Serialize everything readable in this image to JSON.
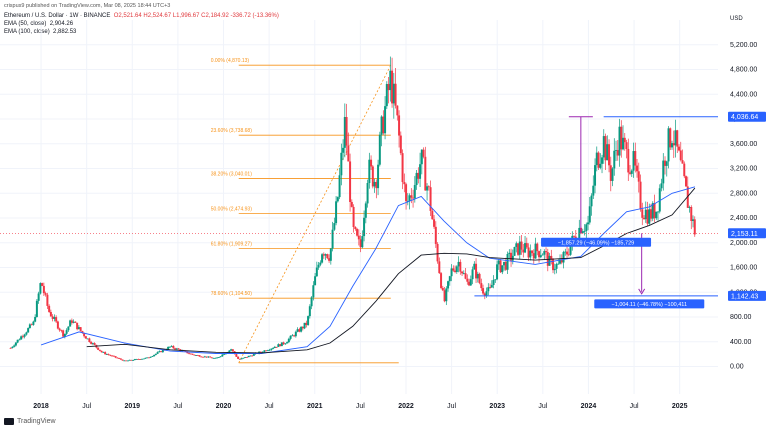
{
  "header": {
    "publisher": "crispus9 published on TradingView.com, Mar 08, 2025 18:44 UTC+3",
    "symbol_line": "Ethereum / U.S. Dollar · 1W · BINANCE",
    "ohlc": "O2,521.64 H2,524.67 L1,996.67 C2,184.92 -336.72 (-13.36%)",
    "ema50_label": "EMA (50, close)",
    "ema50_value": "2,904.26",
    "ema100_label": "EMA (100, close)",
    "ema100_value": "2,882.53",
    "footer_brand": "TradingView"
  },
  "colors": {
    "up": "#089981",
    "down": "#f23645",
    "ema50": "#2962ff",
    "ema100": "#131722",
    "fib": "#f7931a",
    "measure": "#2962ff",
    "measure_down": "#9c27b0"
  },
  "chart_data": {
    "type": "candlestick",
    "currency_label": "USD",
    "y_ticks": [
      "5,200.00",
      "4,800.00",
      "4,400.00",
      "4,000.00",
      "3,600.00",
      "3,200.00",
      "2,800.00",
      "2,400.00",
      "2,000.00",
      "1,600.00",
      "1,200.00",
      "800.00",
      "400.00",
      "0.00"
    ],
    "y_tick_values": [
      5200,
      4800,
      4400,
      4000,
      3600,
      3200,
      2800,
      2400,
      2000,
      1600,
      1200,
      800,
      400,
      0
    ],
    "ylim": [
      -250,
      5600
    ],
    "x_ticks": [
      "2018",
      "Jul",
      "2019",
      "Jul",
      "2020",
      "Jul",
      "2021",
      "Jul",
      "2022",
      "Jul",
      "2023",
      "Jul",
      "2024",
      "Jul",
      "2025"
    ],
    "x_tick_dates": [
      "2018-01",
      "2018-07",
      "2019-01",
      "2019-07",
      "2020-01",
      "2020-07",
      "2021-01",
      "2021-07",
      "2022-01",
      "2022-07",
      "2023-01",
      "2023-07",
      "2024-01",
      "2024-07",
      "2025-01"
    ],
    "price_labels": [
      {
        "text": "4,036.64",
        "value": 4036.64,
        "color": "#2962ff"
      },
      {
        "text": "2,153.11",
        "value": 2153.11,
        "color": "#2962ff"
      },
      {
        "text": "1,142.43",
        "value": 1142.43,
        "color": "#2962ff"
      }
    ],
    "fib_levels": [
      {
        "label": "0.00% (4,870.13)",
        "value": 4870.13
      },
      {
        "label": "23.60% (3,738.68)",
        "value": 3738.68
      },
      {
        "label": "38.20% (3,040.01)",
        "value": 3040.01
      },
      {
        "label": "50.00% (2,474.93)",
        "value": 2474.93
      },
      {
        "label": "61.80% (1,909.27)",
        "value": 1909.27
      },
      {
        "label": "78.60% (1,104.50)",
        "value": 1104.5
      }
    ],
    "fib_base_value": 60,
    "fib_start": "2020-03",
    "fib_end": "2021-11",
    "measure_labels": [
      {
        "text": "−1,857.29 (−46.09%) −185,729",
        "value": 2153.11,
        "date": "2024-10"
      },
      {
        "text": "−1,004.11 (−46.78%) −100,411",
        "value": 1142.43,
        "date": "2024-10"
      }
    ],
    "resistance": {
      "value": 4036.64,
      "from": "2024-03",
      "to": "2025-03"
    },
    "neckline": {
      "value": 2153.11,
      "from": "2024-09",
      "to": "2025-03"
    },
    "target": {
      "value": 1142.43,
      "from": "2022-10",
      "to": "2025-03"
    },
    "keypoints": [
      [
        "2017-09",
        300
      ],
      [
        "2017-12",
        700
      ],
      [
        "2018-01",
        1380
      ],
      [
        "2018-02",
        900
      ],
      [
        "2018-04",
        500
      ],
      [
        "2018-05",
        750
      ],
      [
        "2018-07",
        460
      ],
      [
        "2018-09",
        230
      ],
      [
        "2018-12",
        90
      ],
      [
        "2019-03",
        140
      ],
      [
        "2019-06",
        320
      ],
      [
        "2019-09",
        190
      ],
      [
        "2019-12",
        130
      ],
      [
        "2020-02",
        280
      ],
      [
        "2020-03",
        110
      ],
      [
        "2020-06",
        240
      ],
      [
        "2020-09",
        380
      ],
      [
        "2020-12",
        700
      ],
      [
        "2021-01",
        1400
      ],
      [
        "2021-02",
        1900
      ],
      [
        "2021-03",
        1800
      ],
      [
        "2021-04",
        2700
      ],
      [
        "2021-05",
        3950
      ],
      [
        "2021-06",
        2200
      ],
      [
        "2021-07",
        1900
      ],
      [
        "2021-08",
        3200
      ],
      [
        "2021-09",
        3000
      ],
      [
        "2021-10",
        4000
      ],
      [
        "2021-11",
        4650
      ],
      [
        "2021-12",
        3800
      ],
      [
        "2022-01",
        2600
      ],
      [
        "2022-02",
        2900
      ],
      [
        "2022-03",
        3350
      ],
      [
        "2022-04",
        2800
      ],
      [
        "2022-05",
        1900
      ],
      [
        "2022-06",
        1020
      ],
      [
        "2022-07",
        1550
      ],
      [
        "2022-08",
        1700
      ],
      [
        "2022-09",
        1330
      ],
      [
        "2022-10",
        1580
      ],
      [
        "2022-11",
        1250
      ],
      [
        "2022-12",
        1200
      ],
      [
        "2023-01",
        1600
      ],
      [
        "2023-02",
        1650
      ],
      [
        "2023-03",
        1800
      ],
      [
        "2023-04",
        1950
      ],
      [
        "2023-05",
        1850
      ],
      [
        "2023-06",
        1880
      ],
      [
        "2023-07",
        1860
      ],
      [
        "2023-08",
        1650
      ],
      [
        "2023-09",
        1620
      ],
      [
        "2023-10",
        1800
      ],
      [
        "2023-11",
        2050
      ],
      [
        "2023-12",
        2280
      ],
      [
        "2024-01",
        2300
      ],
      [
        "2024-02",
        3300
      ],
      [
        "2024-03",
        3650
      ],
      [
        "2024-04",
        3100
      ],
      [
        "2024-05",
        3750
      ],
      [
        "2024-06",
        3400
      ],
      [
        "2024-07",
        3250
      ],
      [
        "2024-08",
        2550
      ],
      [
        "2024-09",
        2450
      ],
      [
        "2024-10",
        2550
      ],
      [
        "2024-11",
        3400
      ],
      [
        "2024-12",
        3800
      ],
      [
        "2025-01",
        3300
      ],
      [
        "2025-02",
        2700
      ],
      [
        "2025-03",
        2185
      ]
    ],
    "ema50_points": [
      [
        "2018-01",
        350
      ],
      [
        "2018-06",
        560
      ],
      [
        "2018-12",
        380
      ],
      [
        "2019-06",
        250
      ],
      [
        "2019-12",
        210
      ],
      [
        "2020-06",
        210
      ],
      [
        "2020-12",
        320
      ],
      [
        "2021-03",
        650
      ],
      [
        "2021-06",
        1300
      ],
      [
        "2021-09",
        1900
      ],
      [
        "2021-12",
        2600
      ],
      [
        "2022-03",
        2750
      ],
      [
        "2022-06",
        2350
      ],
      [
        "2022-09",
        2000
      ],
      [
        "2022-12",
        1750
      ],
      [
        "2023-06",
        1650
      ],
      [
        "2023-12",
        1780
      ],
      [
        "2024-03",
        2150
      ],
      [
        "2024-06",
        2500
      ],
      [
        "2024-09",
        2580
      ],
      [
        "2024-12",
        2800
      ],
      [
        "2025-03",
        2904
      ]
    ],
    "ema100_points": [
      [
        "2018-07",
        320
      ],
      [
        "2018-12",
        360
      ],
      [
        "2019-06",
        270
      ],
      [
        "2019-12",
        230
      ],
      [
        "2020-06",
        220
      ],
      [
        "2020-12",
        270
      ],
      [
        "2021-03",
        380
      ],
      [
        "2021-06",
        650
      ],
      [
        "2021-09",
        1050
      ],
      [
        "2021-12",
        1500
      ],
      [
        "2022-03",
        1800
      ],
      [
        "2022-06",
        1830
      ],
      [
        "2022-09",
        1820
      ],
      [
        "2022-12",
        1760
      ],
      [
        "2023-06",
        1720
      ],
      [
        "2023-12",
        1760
      ],
      [
        "2024-03",
        1950
      ],
      [
        "2024-06",
        2150
      ],
      [
        "2024-09",
        2280
      ],
      [
        "2024-12",
        2450
      ],
      [
        "2025-03",
        2883
      ]
    ]
  }
}
